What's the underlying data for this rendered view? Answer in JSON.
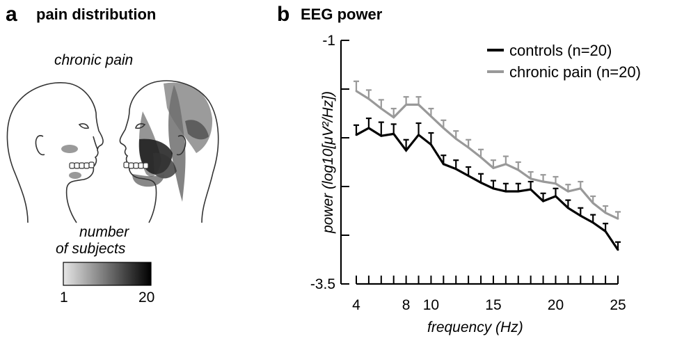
{
  "panel_a": {
    "letter": "a",
    "title": "pain distribution",
    "condition_label": "chronic pain",
    "scale_title_line1": "number",
    "scale_title_line2": "of subjects",
    "scale_min": "1",
    "scale_max": "20"
  },
  "panel_b": {
    "letter": "b",
    "title": "EEG power"
  },
  "chart_data": {
    "type": "line",
    "title": "EEG power",
    "xlabel": "frequency (Hz)",
    "ylabel": "power (log10[μV²/Hz])",
    "xlim": [
      4,
      25
    ],
    "ylim": [
      -3.5,
      -1
    ],
    "x_ticks": [
      4,
      8,
      10,
      15,
      20,
      25
    ],
    "x_tick_labels": [
      "4",
      "8",
      "10",
      "15",
      "20",
      "25"
    ],
    "y_ticks": [
      -1,
      -3.5
    ],
    "y_tick_labels": [
      "-1",
      "-3.5"
    ],
    "y_minor_ticks": [
      -1.5,
      -2,
      -2.5,
      -3
    ],
    "legend_position": "top-right",
    "x": [
      4,
      5,
      6,
      7,
      8,
      9,
      10,
      11,
      12,
      13,
      14,
      15,
      16,
      17,
      18,
      19,
      20,
      21,
      22,
      23,
      24,
      25
    ],
    "series": [
      {
        "name": "controls (n=20)",
        "color": "#000000",
        "values": [
          -1.97,
          -1.9,
          -1.98,
          -1.96,
          -2.13,
          -1.97,
          -2.07,
          -2.27,
          -2.32,
          -2.39,
          -2.46,
          -2.52,
          -2.55,
          -2.55,
          -2.53,
          -2.65,
          -2.6,
          -2.72,
          -2.8,
          -2.87,
          -2.96,
          -3.15
        ],
        "error": [
          0.1,
          0.1,
          0.14,
          0.1,
          0.11,
          0.12,
          0.12,
          0.09,
          0.09,
          0.09,
          0.09,
          0.08,
          0.08,
          0.08,
          0.08,
          0.08,
          0.08,
          0.08,
          0.08,
          0.08,
          0.08,
          0.08
        ]
      },
      {
        "name": "chronic pain (n=20)",
        "color": "#999999",
        "values": [
          -1.52,
          -1.6,
          -1.7,
          -1.79,
          -1.66,
          -1.66,
          -1.78,
          -1.9,
          -2.01,
          -2.1,
          -2.2,
          -2.31,
          -2.27,
          -2.33,
          -2.42,
          -2.45,
          -2.47,
          -2.55,
          -2.52,
          -2.67,
          -2.77,
          -2.83
        ],
        "error": [
          0.1,
          0.09,
          0.09,
          0.09,
          0.08,
          0.08,
          0.08,
          0.08,
          0.08,
          0.08,
          0.08,
          0.08,
          0.08,
          0.08,
          0.07,
          0.07,
          0.07,
          0.07,
          0.07,
          0.07,
          0.07,
          0.07
        ]
      }
    ]
  },
  "colors": {
    "controls": "#000000",
    "chronic_pain": "#999999",
    "head_outline": "#333333",
    "pain_region_light": "#bdbdbd",
    "pain_region_mid": "#7a7a7a",
    "pain_region_dark": "#1a1a1a"
  }
}
